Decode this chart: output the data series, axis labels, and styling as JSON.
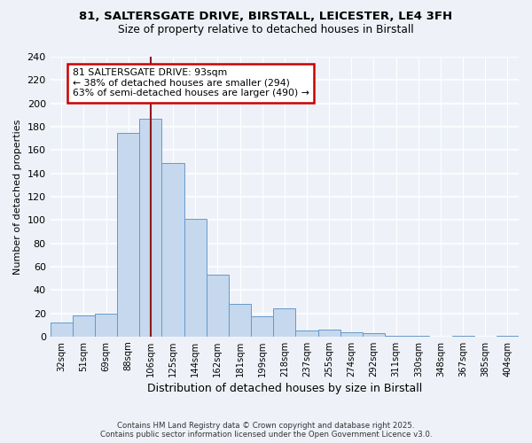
{
  "title_line1": "81, SALTERSGATE DRIVE, BIRSTALL, LEICESTER, LE4 3FH",
  "title_line2": "Size of property relative to detached houses in Birstall",
  "xlabel": "Distribution of detached houses by size in Birstall",
  "ylabel": "Number of detached properties",
  "bar_labels": [
    "32sqm",
    "51sqm",
    "69sqm",
    "88sqm",
    "106sqm",
    "125sqm",
    "144sqm",
    "162sqm",
    "181sqm",
    "199sqm",
    "218sqm",
    "237sqm",
    "255sqm",
    "274sqm",
    "292sqm",
    "311sqm",
    "330sqm",
    "348sqm",
    "367sqm",
    "385sqm",
    "404sqm"
  ],
  "bar_values": [
    12,
    18,
    20,
    175,
    187,
    149,
    101,
    53,
    28,
    17,
    24,
    5,
    6,
    4,
    3,
    1,
    1,
    0,
    1,
    0,
    1
  ],
  "bar_color": "#c5d8ed",
  "bar_edge_color": "#6699cc",
  "vline_x": 4.0,
  "vline_color": "#8b1a1a",
  "annotation_title": "81 SALTERSGATE DRIVE: 93sqm",
  "annotation_line2": "← 38% of detached houses are smaller (294)",
  "annotation_line3": "63% of semi-detached houses are larger (490) →",
  "annotation_box_color": "white",
  "annotation_box_edge": "#cc0000",
  "ylim": [
    0,
    240
  ],
  "yticks": [
    0,
    20,
    40,
    60,
    80,
    100,
    120,
    140,
    160,
    180,
    200,
    220,
    240
  ],
  "footer_line1": "Contains HM Land Registry data © Crown copyright and database right 2025.",
  "footer_line2": "Contains public sector information licensed under the Open Government Licence v3.0.",
  "bg_color": "#eef2f8"
}
